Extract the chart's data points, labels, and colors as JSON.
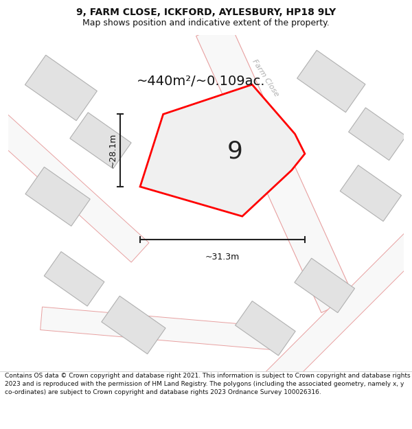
{
  "title": "9, FARM CLOSE, ICKFORD, AYLESBURY, HP18 9LY",
  "subtitle": "Map shows position and indicative extent of the property.",
  "area_text": "~440m²/~0.109ac.",
  "width_label": "~31.3m",
  "height_label": "~28.1m",
  "plot_number": "9",
  "footer": "Contains OS data © Crown copyright and database right 2021. This information is subject to Crown copyright and database rights 2023 and is reproduced with the permission of HM Land Registry. The polygons (including the associated geometry, namely x, y co-ordinates) are subject to Crown copyright and database rights 2023 Ordnance Survey 100026316.",
  "bg_color": "#ffffff",
  "map_bg": "#f5f5f5",
  "building_fill": "#e2e2e2",
  "building_edge": "#b0b0b0",
  "road_fill": "#ffffff",
  "road_edge_color": "#e8a0a0",
  "highlight_color": "#ff0000",
  "highlight_fill": "#f0f0f0",
  "text_color": "#111111",
  "road_label_color": "#aaaaaa",
  "dim_color": "#222222",
  "title_fontsize": 10,
  "subtitle_fontsize": 9,
  "area_fontsize": 16,
  "dim_fontsize": 9,
  "footer_fontsize": 6.5
}
